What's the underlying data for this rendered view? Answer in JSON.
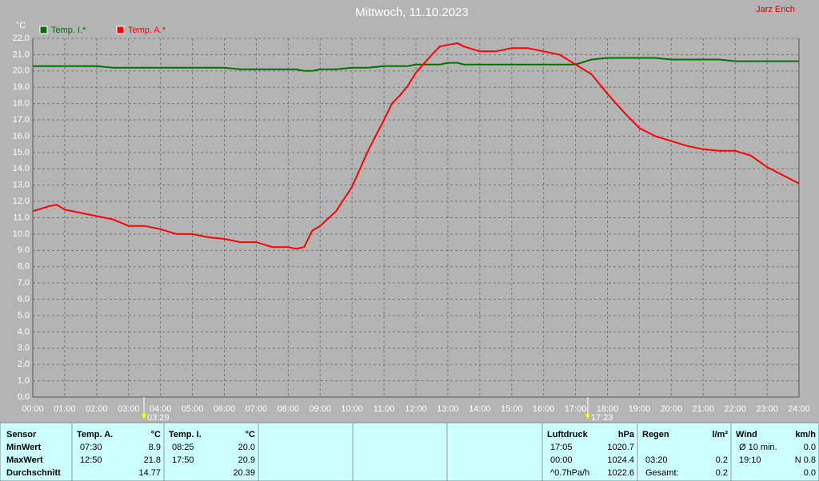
{
  "chart_data": {
    "type": "line",
    "title": "Mittwoch, 11.10.2023",
    "author": "Jarz Erich",
    "y_label": "°C",
    "xlim": [
      0,
      24
    ],
    "ylim": [
      0,
      22
    ],
    "grid": true,
    "legend": "top-left",
    "x": [
      0,
      0.5,
      0.75,
      1,
      1.5,
      2,
      2.5,
      3,
      3.5,
      4,
      4.5,
      5,
      5.5,
      6,
      6.5,
      7,
      7.5,
      8,
      8.25,
      8.5,
      8.75,
      9,
      9.5,
      10,
      10.5,
      11,
      11.25,
      11.5,
      11.75,
      12,
      12.5,
      12.75,
      13,
      13.3,
      13.5,
      14,
      14.5,
      15,
      15.5,
      16,
      16.5,
      17,
      17.5,
      18,
      18.5,
      19,
      19.5,
      20,
      20.5,
      21,
      21.5,
      22,
      22.5,
      23,
      23.5,
      24
    ],
    "series": [
      {
        "name": "Temp. I.*",
        "color": "#007000",
        "values": [
          20.3,
          20.3,
          20.3,
          20.3,
          20.3,
          20.3,
          20.2,
          20.2,
          20.2,
          20.2,
          20.2,
          20.2,
          20.2,
          20.2,
          20.1,
          20.1,
          20.1,
          20.1,
          20.1,
          20.0,
          20.0,
          20.1,
          20.1,
          20.2,
          20.2,
          20.3,
          20.3,
          20.3,
          20.3,
          20.4,
          20.4,
          20.4,
          20.5,
          20.5,
          20.4,
          20.4,
          20.4,
          20.4,
          20.4,
          20.4,
          20.4,
          20.4,
          20.7,
          20.8,
          20.8,
          20.8,
          20.8,
          20.7,
          20.7,
          20.7,
          20.7,
          20.6,
          20.6,
          20.6,
          20.6,
          20.6
        ]
      },
      {
        "name": "Temp. A.*",
        "color": "#ff0000",
        "values": [
          11.4,
          11.7,
          11.8,
          11.5,
          11.3,
          11.1,
          10.9,
          10.5,
          10.5,
          10.3,
          10.0,
          10.0,
          9.8,
          9.7,
          9.5,
          9.5,
          9.2,
          9.2,
          9.1,
          9.2,
          10.2,
          10.5,
          11.4,
          12.9,
          15.1,
          17.0,
          18.0,
          18.5,
          19.1,
          19.9,
          21.0,
          21.5,
          21.6,
          21.7,
          21.5,
          21.2,
          21.2,
          21.4,
          21.4,
          21.2,
          21.0,
          20.4,
          19.8,
          18.6,
          17.5,
          16.5,
          16.0,
          15.7,
          15.4,
          15.2,
          15.1,
          15.1,
          14.8,
          14.1,
          13.6,
          13.1
        ]
      }
    ],
    "xticks": [
      {
        "value": 0,
        "label": "00:00"
      },
      {
        "value": 1,
        "label": "01:00"
      },
      {
        "value": 2,
        "label": "02:00"
      },
      {
        "value": 3,
        "label": "03:00"
      },
      {
        "value": 4,
        "label": "04:00"
      },
      {
        "value": 5,
        "label": "05:00"
      },
      {
        "value": 6,
        "label": "06:00"
      },
      {
        "value": 7,
        "label": "07:00"
      },
      {
        "value": 8,
        "label": "08:00"
      },
      {
        "value": 9,
        "label": "09:00"
      },
      {
        "value": 10,
        "label": "10:00"
      },
      {
        "value": 11,
        "label": "11:00"
      },
      {
        "value": 12,
        "label": "12:00"
      },
      {
        "value": 13,
        "label": "13:00"
      },
      {
        "value": 14,
        "label": "14:00"
      },
      {
        "value": 15,
        "label": "15:00"
      },
      {
        "value": 16,
        "label": "16:00"
      },
      {
        "value": 17,
        "label": "17:00"
      },
      {
        "value": 18,
        "label": "18:00"
      },
      {
        "value": 19,
        "label": "19:00"
      },
      {
        "value": 20,
        "label": "20:00"
      },
      {
        "value": 21,
        "label": "21:00"
      },
      {
        "value": 22,
        "label": "22:00"
      },
      {
        "value": 23,
        "label": "23:00"
      },
      {
        "value": 24,
        "label": "24:00"
      }
    ],
    "yticks": [
      {
        "value": 0,
        "label": "0.0"
      },
      {
        "value": 1,
        "label": "1.0"
      },
      {
        "value": 2,
        "label": "2.0"
      },
      {
        "value": 3,
        "label": "3.0"
      },
      {
        "value": 4,
        "label": "4.0"
      },
      {
        "value": 5,
        "label": "5.0"
      },
      {
        "value": 6,
        "label": "6.0"
      },
      {
        "value": 7,
        "label": "7.0"
      },
      {
        "value": 8,
        "label": "8.0"
      },
      {
        "value": 9,
        "label": "9.0"
      },
      {
        "value": 10,
        "label": "10.0"
      },
      {
        "value": 11,
        "label": "11.0"
      },
      {
        "value": 12,
        "label": "12.0"
      },
      {
        "value": 13,
        "label": "13.0"
      },
      {
        "value": 14,
        "label": "14.0"
      },
      {
        "value": 15,
        "label": "15.0"
      },
      {
        "value": 16,
        "label": "16.0"
      },
      {
        "value": 17,
        "label": "17.0"
      },
      {
        "value": 18,
        "label": "18.0"
      },
      {
        "value": 19,
        "label": "19.0"
      },
      {
        "value": 20,
        "label": "20.0"
      },
      {
        "value": 21,
        "label": "21.0"
      },
      {
        "value": 22,
        "label": "22.0"
      }
    ],
    "annotations": [
      {
        "x": 3.483,
        "label": "03:29"
      },
      {
        "x": 17.383,
        "label": "17:23"
      }
    ]
  },
  "table": {
    "sensor": [
      "Sensor",
      "MinWert",
      "MaxWert",
      "Durchschnitt"
    ],
    "columns": [
      {
        "header": [
          "Temp. A.",
          "°C"
        ],
        "rows": [
          [
            "07:30",
            "8.9"
          ],
          [
            "12:50",
            "21.8"
          ],
          [
            "14.77"
          ]
        ]
      },
      {
        "header": [
          "Temp. I.",
          "°C"
        ],
        "rows": [
          [
            "08:25",
            "20.0"
          ],
          [
            "17:50",
            "20.9"
          ],
          [
            "20.39"
          ]
        ]
      },
      {
        "header": [
          "Luftdruck",
          "hPa"
        ],
        "rows": [
          [
            "17:05",
            "1020.7"
          ],
          [
            "00:00",
            "1024.4"
          ],
          [
            "^0.7hPa/h",
            "1022.6"
          ]
        ]
      },
      {
        "header": [
          "Regen",
          "l/m²"
        ],
        "rows": [
          null,
          [
            "03:20",
            "0.2"
          ],
          [
            "Gesamt:",
            "0.2"
          ]
        ]
      },
      {
        "header": [
          "Wind",
          "km/h"
        ],
        "rows": [
          [
            "Ø 10 min.",
            "0.0"
          ],
          [
            "19:10",
            "N 0.8"
          ],
          [
            "0.0"
          ]
        ]
      }
    ]
  }
}
